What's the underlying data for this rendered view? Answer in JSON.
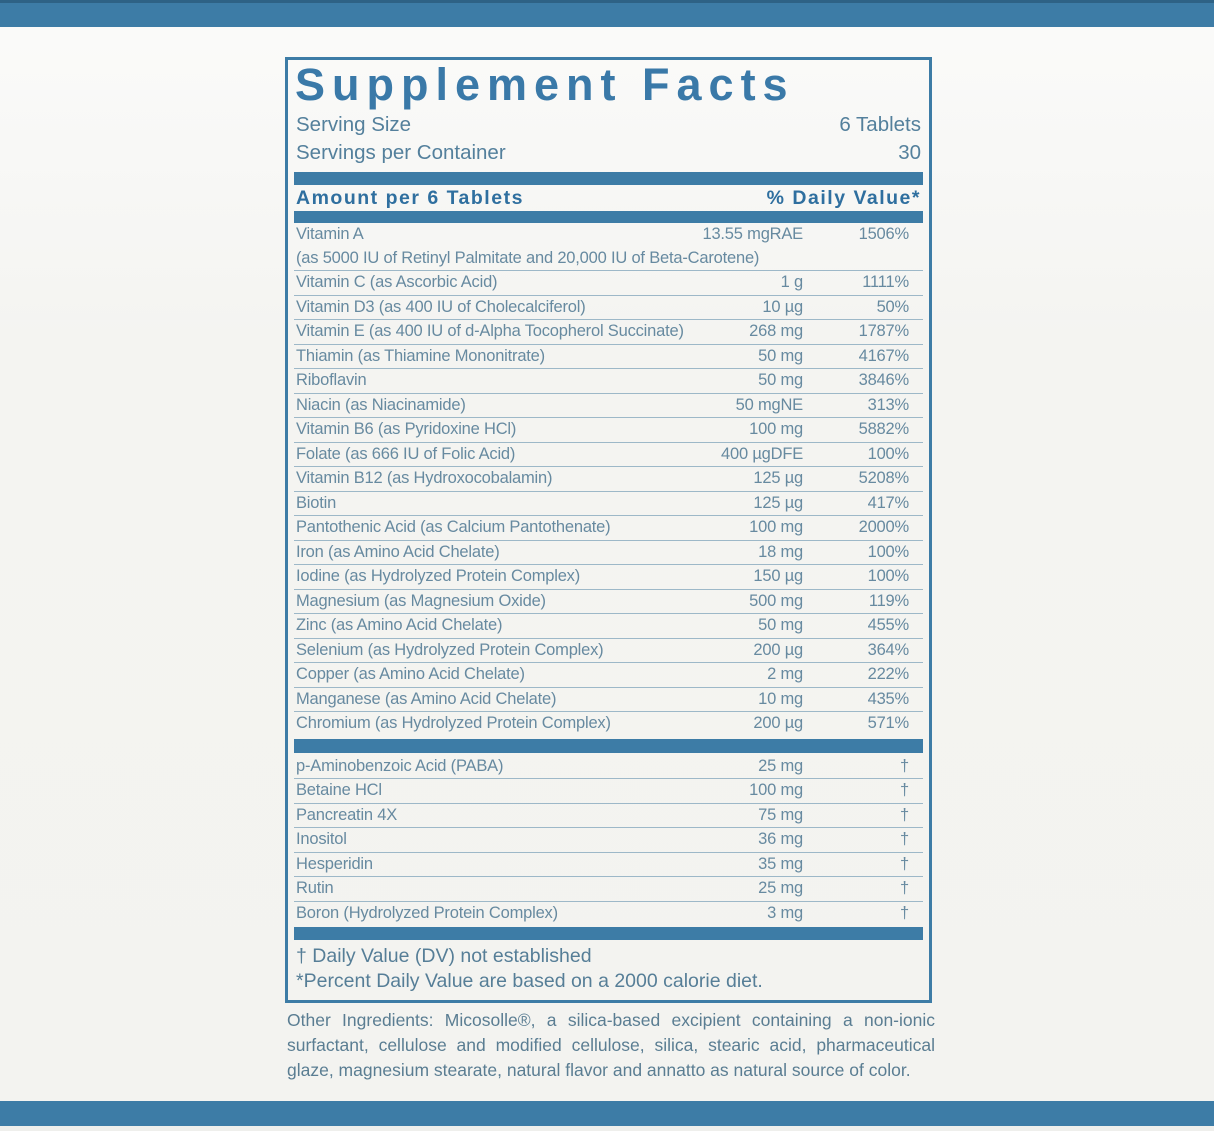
{
  "colors": {
    "accent": "#3d7ca6",
    "top_edge": "#2e6285",
    "title_text": "#3a79a8",
    "header_text": "#2f6f9f",
    "row_text": "#678aa0",
    "separator": "#9db8c8",
    "serving_text": "#54809c",
    "footnote_text": "#567e97",
    "paragraph_text": "#5a7d92"
  },
  "panel": {
    "title": "Supplement Facts",
    "serving_rows": [
      {
        "label": "Serving Size",
        "value": "6 Tablets"
      },
      {
        "label": "Servings per Container",
        "value": "30"
      }
    ],
    "column_header": {
      "left": "Amount per 6 Tablets",
      "right": "% Daily Value*"
    },
    "nutrients": [
      {
        "name": "Vitamin A",
        "sub": "(as 5000 IU of Retinyl Palmitate and 20,000 IU of Beta-Carotene)",
        "amount": "13.55 mgRAE",
        "dv": "1506%"
      },
      {
        "name": "Vitamin C (as Ascorbic Acid)",
        "amount": "1 g",
        "dv": "1111%"
      },
      {
        "name": "Vitamin D3 (as 400 IU of Cholecalciferol)",
        "amount": "10 µg",
        "dv": "50%"
      },
      {
        "name": "Vitamin E (as 400 IU of d-Alpha Tocopherol Succinate)",
        "amount": "268 mg",
        "dv": "1787%"
      },
      {
        "name": "Thiamin (as Thiamine Mononitrate)",
        "amount": "50 mg",
        "dv": "4167%"
      },
      {
        "name": "Riboflavin",
        "amount": "50 mg",
        "dv": "3846%"
      },
      {
        "name": "Niacin (as Niacinamide)",
        "amount": "50 mgNE",
        "dv": "313%"
      },
      {
        "name": "Vitamin B6 (as Pyridoxine HCl)",
        "amount": "100 mg",
        "dv": "5882%"
      },
      {
        "name": "Folate (as 666 IU of Folic Acid)",
        "amount": "400 µgDFE",
        "dv": "100%"
      },
      {
        "name": "Vitamin B12 (as Hydroxocobalamin)",
        "amount": "125 µg",
        "dv": "5208%"
      },
      {
        "name": "Biotin",
        "amount": "125 µg",
        "dv": "417%"
      },
      {
        "name": "Pantothenic Acid (as Calcium Pantothenate)",
        "amount": "100 mg",
        "dv": "2000%"
      },
      {
        "name": "Iron (as Amino Acid Chelate)",
        "amount": "18 mg",
        "dv": "100%"
      },
      {
        "name": "Iodine (as Hydrolyzed Protein Complex)",
        "amount": "150 µg",
        "dv": "100%"
      },
      {
        "name": "Magnesium (as Magnesium Oxide)",
        "amount": "500 mg",
        "dv": "119%"
      },
      {
        "name": "Zinc (as Amino Acid Chelate)",
        "amount": "50 mg",
        "dv": "455%"
      },
      {
        "name": "Selenium (as Hydrolyzed Protein Complex)",
        "amount": "200 µg",
        "dv": "364%"
      },
      {
        "name": "Copper (as Amino Acid Chelate)",
        "amount": "2 mg",
        "dv": "222%"
      },
      {
        "name": "Manganese (as Amino Acid Chelate)",
        "amount": "10 mg",
        "dv": "435%"
      },
      {
        "name": "Chromium (as Hydrolyzed Protein Complex)",
        "amount": "200 µg",
        "dv": "571%"
      }
    ],
    "extras": [
      {
        "name": "p-Aminobenzoic Acid (PABA)",
        "amount": "25 mg",
        "dv": "†"
      },
      {
        "name": "Betaine HCl",
        "amount": "100 mg",
        "dv": "†"
      },
      {
        "name": "Pancreatin 4X",
        "amount": "75 mg",
        "dv": "†"
      },
      {
        "name": "Inositol",
        "amount": "36 mg",
        "dv": "†"
      },
      {
        "name": "Hesperidin",
        "amount": "35 mg",
        "dv": "†"
      },
      {
        "name": "Rutin",
        "amount": "25 mg",
        "dv": "†"
      },
      {
        "name": "Boron (Hydrolyzed Protein Complex)",
        "amount": "3 mg",
        "dv": "†"
      }
    ],
    "footnotes": [
      "† Daily Value (DV) not established",
      "*Percent Daily Value are based on a 2000 calorie diet."
    ]
  },
  "other_ingredients": {
    "text": "Other Ingredients: Micosolle®, a silica-based excipient containing a non-ionic surfactant, cellulose and modified cellulose, silica, stearic acid, pharmaceutical glaze, magnesium stearate, natural flavor and annatto as natural source of color."
  }
}
